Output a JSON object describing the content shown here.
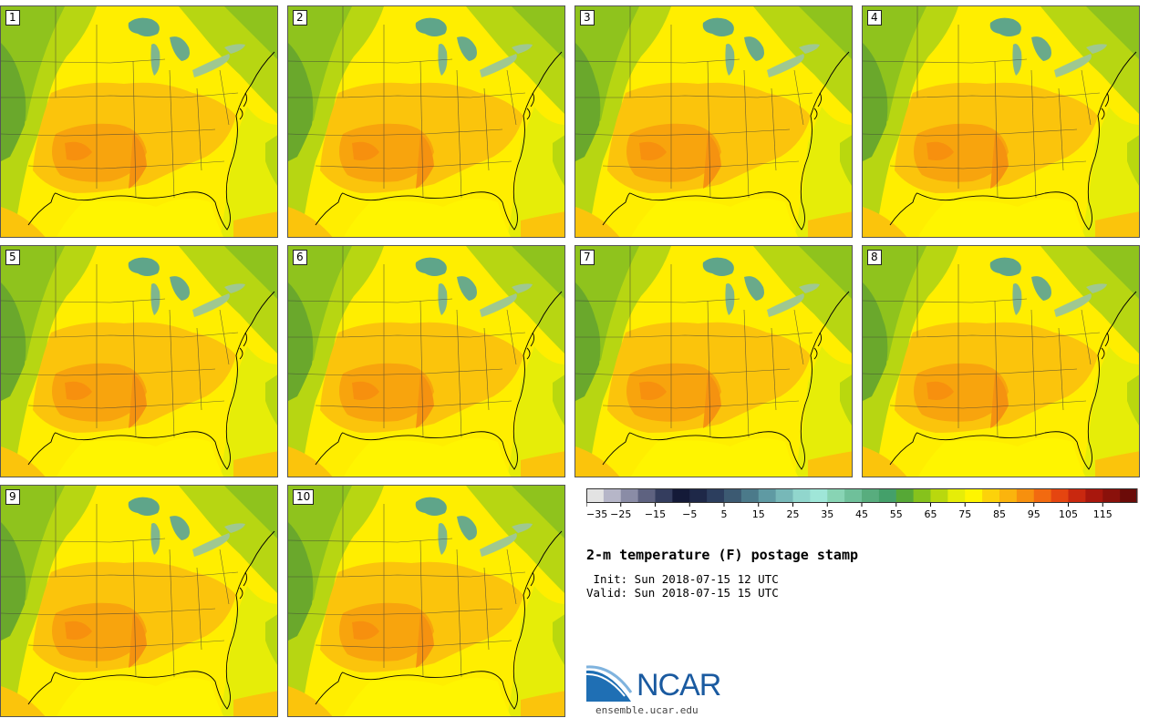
{
  "panels": [
    {
      "label": "1"
    },
    {
      "label": "2"
    },
    {
      "label": "3"
    },
    {
      "label": "4"
    },
    {
      "label": "5"
    },
    {
      "label": "6"
    },
    {
      "label": "7"
    },
    {
      "label": "8"
    },
    {
      "label": "9"
    },
    {
      "label": "10"
    }
  ],
  "colorbar": {
    "colors": [
      "#e3e3e3",
      "#b6b6c8",
      "#8a8ca6",
      "#5e6280",
      "#343d5e",
      "#141a38",
      "#1e2848",
      "#2c3e5e",
      "#3c5a72",
      "#4b7a8a",
      "#5f9aa3",
      "#77b8b8",
      "#91d6cd",
      "#9fe6d8",
      "#88d4b4",
      "#6fc09a",
      "#58ad7e",
      "#44a06a",
      "#56a836",
      "#86c21c",
      "#b9d80e",
      "#e6ed08",
      "#fff500",
      "#fcd20a",
      "#fbb40d",
      "#f7900e",
      "#f26a10",
      "#e54510",
      "#c9280f",
      "#a8170d",
      "#8a110b",
      "#6b0b08"
    ],
    "tick_labels": [
      "−35",
      "−25",
      "−15",
      "−5",
      "5",
      "15",
      "25",
      "35",
      "45",
      "55",
      "65",
      "75",
      "85",
      "95",
      "105",
      "115"
    ]
  },
  "title": "2-m temperature (F) postage stamp",
  "init": " Init: Sun 2018-07-15 12 UTC",
  "valid": "Valid: Sun 2018-07-15 15 UTC",
  "logo": {
    "name": "NCAR",
    "url": "ensemble.ucar.edu"
  }
}
